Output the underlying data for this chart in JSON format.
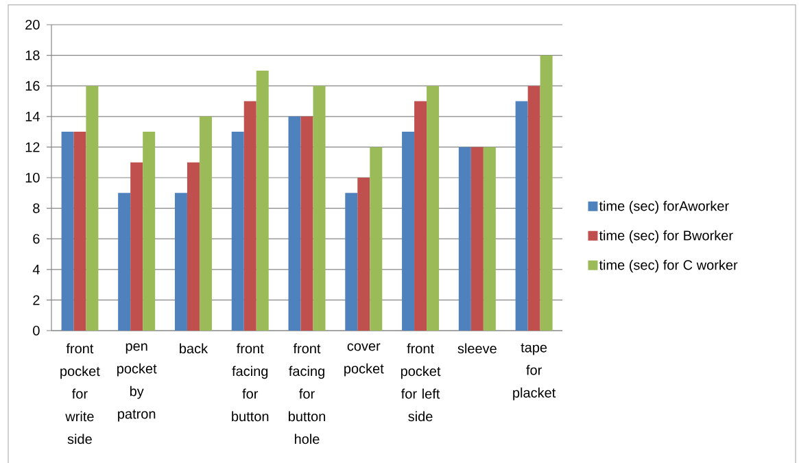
{
  "chart_data": {
    "type": "bar",
    "categories": [
      "front pocket for write side",
      "pen pocket by patron",
      "back",
      "front facing for button",
      "front facing for button hole",
      "cover pocket",
      "front pocket for left side",
      "sleeve",
      "tape for placket"
    ],
    "series": [
      {
        "name": "time (sec) forAworker",
        "color": "#4f81bd",
        "values": [
          13,
          9,
          9,
          13,
          14,
          9,
          13,
          12,
          15
        ]
      },
      {
        "name": "time (sec) for Bworker",
        "color": "#c0504d",
        "values": [
          13,
          11,
          11,
          15,
          14,
          10,
          15,
          12,
          16
        ]
      },
      {
        "name": "time (sec) for C worker",
        "color": "#9bbb59",
        "values": [
          16,
          13,
          14,
          17,
          16,
          12,
          16,
          12,
          18
        ]
      }
    ],
    "ylim": [
      0,
      20
    ],
    "yticks": [
      0,
      2,
      4,
      6,
      8,
      10,
      12,
      14,
      16,
      18,
      20
    ],
    "grid": "y",
    "legend": "right"
  }
}
